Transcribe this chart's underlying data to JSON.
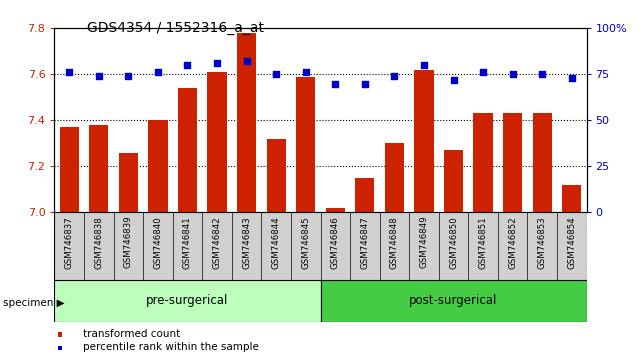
{
  "title": "GDS4354 / 1552316_a_at",
  "categories": [
    "GSM746837",
    "GSM746838",
    "GSM746839",
    "GSM746840",
    "GSM746841",
    "GSM746842",
    "GSM746843",
    "GSM746844",
    "GSM746845",
    "GSM746846",
    "GSM746847",
    "GSM746848",
    "GSM746849",
    "GSM746850",
    "GSM746851",
    "GSM746852",
    "GSM746853",
    "GSM746854"
  ],
  "bar_values": [
    7.37,
    7.38,
    7.26,
    7.4,
    7.54,
    7.61,
    7.78,
    7.32,
    7.59,
    7.02,
    7.15,
    7.3,
    7.62,
    7.27,
    7.43,
    7.43,
    7.43,
    7.12
  ],
  "percentile_values": [
    76,
    74,
    74,
    76,
    80,
    81,
    82,
    75,
    76,
    70,
    70,
    74,
    80,
    72,
    76,
    75,
    75,
    73
  ],
  "bar_color": "#cc2200",
  "dot_color": "#0000cc",
  "ylim_left": [
    7.0,
    7.8
  ],
  "ylim_right": [
    0,
    100
  ],
  "yticks_left": [
    7.0,
    7.2,
    7.4,
    7.6,
    7.8
  ],
  "yticks_right": [
    0,
    25,
    50,
    75,
    100
  ],
  "dotted_lines": [
    7.2,
    7.4,
    7.6
  ],
  "pre_surgical_count": 9,
  "post_surgical_count": 9,
  "pre_color": "#bbffbb",
  "post_color": "#44cc44",
  "label_bar": "transformed count",
  "label_dot": "percentile rank within the sample",
  "pre_label": "pre-surgerical",
  "post_label": "post-surgerical",
  "title_fontsize": 10,
  "bar_color_left": "#cc2200",
  "dot_color_right": "#0000cc",
  "bar_width": 0.65,
  "gray_color": "#d0d0d0"
}
